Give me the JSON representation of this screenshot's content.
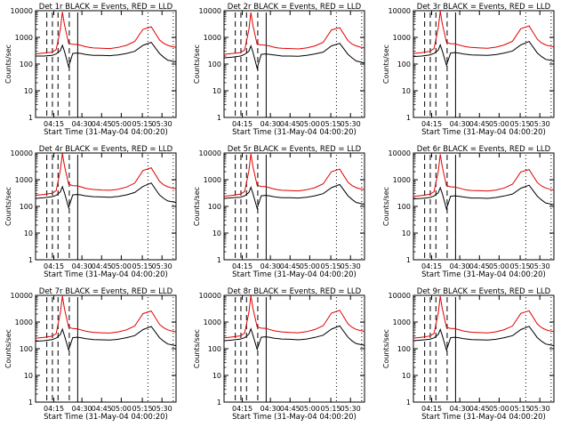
{
  "figure": {
    "xlabel": "Start Time (31-May-04 04:00:20)",
    "ylabel": "Counts/sec",
    "x_ticks": [
      "04:15",
      "04:30",
      "04:45",
      "05:00",
      "05:15",
      "05:30"
    ],
    "y_ticks": [
      "1",
      "10",
      "100",
      "1000",
      "10000"
    ],
    "colors": {
      "events": "#000000",
      "lld": "#e00000"
    }
  },
  "chart_data": [
    {
      "type": "line",
      "title": "Det 1r BLACK = Events, RED = LLD",
      "xlabel": "Start Time (31-May-04 04:00:20)",
      "ylabel": "Counts/sec",
      "yscale": "log",
      "ylim": [
        1,
        10000
      ],
      "xlim_minutes": [
        4,
        38
      ],
      "x": [
        4,
        6,
        8,
        9,
        10,
        10.5,
        11,
        12,
        13,
        14,
        15,
        16,
        17,
        18,
        20,
        22,
        24,
        26,
        28,
        30,
        32,
        34,
        35,
        36,
        37,
        38
      ],
      "series": [
        {
          "name": "Events",
          "color": "#000000",
          "values": [
            200,
            200,
            210,
            240,
            320,
            500,
            300,
            80,
            250,
            260,
            250,
            230,
            220,
            210,
            210,
            205,
            220,
            250,
            300,
            500,
            650,
            250,
            180,
            140,
            130,
            120
          ]
        },
        {
          "name": "LLD",
          "color": "#e00000",
          "values": [
            240,
            260,
            280,
            350,
            2000,
            9000,
            3000,
            600,
            550,
            540,
            500,
            450,
            420,
            400,
            390,
            380,
            420,
            500,
            700,
            2000,
            2500,
            800,
            600,
            500,
            450,
            420
          ]
        }
      ]
    },
    {
      "type": "line",
      "title": "Det 2r BLACK = Events, RED = LLD",
      "xlabel": "Start Time (31-May-04 04:00:20)",
      "ylabel": "Counts/sec",
      "yscale": "log",
      "ylim": [
        1,
        10000
      ],
      "xlim_minutes": [
        4,
        38
      ],
      "x": [
        4,
        6,
        8,
        9,
        10,
        10.5,
        11,
        12,
        13,
        14,
        15,
        16,
        17,
        18,
        20,
        22,
        24,
        26,
        28,
        30,
        32,
        34,
        35,
        36,
        37,
        38
      ],
      "series": [
        {
          "name": "Events",
          "color": "#000000",
          "values": [
            170,
            180,
            200,
            230,
            300,
            480,
            280,
            70,
            230,
            240,
            230,
            220,
            210,
            200,
            200,
            195,
            210,
            240,
            280,
            480,
            600,
            230,
            170,
            130,
            120,
            110
          ]
        },
        {
          "name": "LLD",
          "color": "#e00000",
          "values": [
            230,
            250,
            270,
            340,
            1900,
            8500,
            2800,
            550,
            520,
            510,
            480,
            430,
            400,
            390,
            380,
            370,
            400,
            480,
            650,
            1900,
            2300,
            750,
            560,
            480,
            430,
            400
          ]
        }
      ]
    },
    {
      "type": "line",
      "title": "Det 3r BLACK = Events, RED = LLD",
      "xlabel": "Start Time (31-May-04 04:00:20)",
      "ylabel": "Counts/sec",
      "yscale": "log",
      "ylim": [
        1,
        10000
      ],
      "xlim_minutes": [
        4,
        38
      ],
      "x": [
        4,
        6,
        8,
        9,
        10,
        10.5,
        11,
        12,
        13,
        14,
        15,
        16,
        17,
        18,
        20,
        22,
        24,
        26,
        28,
        30,
        32,
        34,
        35,
        36,
        37,
        38
      ],
      "series": [
        {
          "name": "Events",
          "color": "#000000",
          "values": [
            190,
            200,
            220,
            250,
            330,
            520,
            310,
            90,
            260,
            270,
            260,
            240,
            230,
            220,
            215,
            210,
            225,
            260,
            310,
            520,
            700,
            260,
            190,
            150,
            140,
            130
          ]
        },
        {
          "name": "LLD",
          "color": "#e00000",
          "values": [
            250,
            270,
            300,
            380,
            2200,
            9500,
            3200,
            650,
            580,
            570,
            520,
            470,
            440,
            420,
            400,
            390,
            430,
            520,
            720,
            2100,
            2700,
            850,
            620,
            520,
            470,
            440
          ]
        }
      ]
    },
    {
      "type": "line",
      "title": "Det 4r BLACK = Events, RED = LLD",
      "xlabel": "Start Time (31-May-04 04:00:20)",
      "ylabel": "Counts/sec",
      "yscale": "log",
      "ylim": [
        1,
        10000
      ],
      "xlim_minutes": [
        4,
        38
      ],
      "x": [
        4,
        6,
        8,
        9,
        10,
        10.5,
        11,
        12,
        13,
        14,
        15,
        16,
        17,
        18,
        20,
        22,
        24,
        26,
        28,
        30,
        32,
        34,
        35,
        36,
        37,
        38
      ],
      "series": [
        {
          "name": "Events",
          "color": "#000000",
          "values": [
            200,
            210,
            230,
            260,
            350,
            550,
            320,
            90,
            270,
            280,
            270,
            250,
            240,
            230,
            225,
            220,
            235,
            270,
            330,
            560,
            750,
            270,
            200,
            160,
            150,
            140
          ]
        },
        {
          "name": "LLD",
          "color": "#e00000",
          "values": [
            260,
            280,
            310,
            390,
            2300,
            9800,
            3300,
            680,
            600,
            590,
            540,
            480,
            450,
            430,
            410,
            400,
            440,
            530,
            740,
            2200,
            2800,
            870,
            640,
            540,
            490,
            450
          ]
        }
      ]
    },
    {
      "type": "line",
      "title": "Det 5r BLACK = Events, RED = LLD",
      "xlabel": "Start Time (31-May-04 04:00:20)",
      "ylabel": "Counts/sec",
      "yscale": "log",
      "ylim": [
        1,
        10000
      ],
      "xlim_minutes": [
        4,
        38
      ],
      "x": [
        4,
        6,
        8,
        9,
        10,
        10.5,
        11,
        12,
        13,
        14,
        15,
        16,
        17,
        18,
        20,
        22,
        24,
        26,
        28,
        30,
        32,
        34,
        35,
        36,
        37,
        38
      ],
      "series": [
        {
          "name": "Events",
          "color": "#000000",
          "values": [
            200,
            210,
            220,
            250,
            330,
            520,
            300,
            85,
            250,
            260,
            250,
            230,
            220,
            210,
            210,
            205,
            220,
            250,
            300,
            500,
            660,
            250,
            180,
            140,
            130,
            120
          ]
        },
        {
          "name": "LLD",
          "color": "#e00000",
          "values": [
            240,
            260,
            290,
            360,
            2100,
            9200,
            3100,
            620,
            560,
            550,
            500,
            450,
            420,
            400,
            390,
            380,
            420,
            500,
            700,
            2000,
            2500,
            800,
            600,
            500,
            450,
            420
          ]
        }
      ]
    },
    {
      "type": "line",
      "title": "Det 6r BLACK = Events, RED = LLD",
      "xlabel": "Start Time (31-May-04 04:00:20)",
      "ylabel": "Counts/sec",
      "yscale": "log",
      "ylim": [
        1,
        10000
      ],
      "xlim_minutes": [
        4,
        38
      ],
      "x": [
        4,
        6,
        8,
        9,
        10,
        10.5,
        11,
        12,
        13,
        14,
        15,
        16,
        17,
        18,
        20,
        22,
        24,
        26,
        28,
        30,
        32,
        34,
        35,
        36,
        37,
        38
      ],
      "series": [
        {
          "name": "Events",
          "color": "#000000",
          "values": [
            190,
            200,
            215,
            245,
            320,
            500,
            300,
            80,
            240,
            250,
            240,
            225,
            215,
            205,
            205,
            200,
            215,
            245,
            290,
            480,
            620,
            240,
            175,
            135,
            125,
            115
          ]
        },
        {
          "name": "LLD",
          "color": "#e00000",
          "values": [
            235,
            255,
            285,
            355,
            2000,
            9000,
            3000,
            600,
            540,
            530,
            490,
            440,
            410,
            395,
            385,
            375,
            410,
            490,
            680,
            1950,
            2400,
            780,
            580,
            490,
            440,
            410
          ]
        }
      ]
    },
    {
      "type": "line",
      "title": "Det 7r BLACK = Events, RED = LLD",
      "xlabel": "Start Time (31-May-04 04:00:20)",
      "ylabel": "Counts/sec",
      "yscale": "log",
      "ylim": [
        1,
        10000
      ],
      "xlim_minutes": [
        4,
        38
      ],
      "x": [
        4,
        6,
        8,
        9,
        10,
        10.5,
        11,
        12,
        13,
        14,
        15,
        16,
        17,
        18,
        20,
        22,
        24,
        26,
        28,
        30,
        32,
        34,
        35,
        36,
        37,
        38
      ],
      "series": [
        {
          "name": "Events",
          "color": "#000000",
          "values": [
            190,
            200,
            220,
            250,
            340,
            540,
            310,
            90,
            260,
            270,
            260,
            240,
            230,
            220,
            215,
            210,
            225,
            260,
            310,
            520,
            680,
            260,
            190,
            150,
            140,
            130
          ]
        },
        {
          "name": "LLD",
          "color": "#e00000",
          "values": [
            245,
            265,
            295,
            370,
            2200,
            9400,
            3150,
            640,
            570,
            560,
            510,
            460,
            430,
            410,
            395,
            385,
            425,
            510,
            710,
            2050,
            2600,
            820,
            610,
            510,
            460,
            430
          ]
        }
      ]
    },
    {
      "type": "line",
      "title": "Det 8r BLACK = Events, RED = LLD",
      "xlabel": "Start Time (31-May-04 04:00:20)",
      "ylabel": "Counts/sec",
      "yscale": "log",
      "ylim": [
        1,
        10000
      ],
      "xlim_minutes": [
        4,
        38
      ],
      "x": [
        4,
        6,
        8,
        9,
        10,
        10.5,
        11,
        12,
        13,
        14,
        15,
        16,
        17,
        18,
        20,
        22,
        24,
        26,
        28,
        30,
        32,
        34,
        35,
        36,
        37,
        38
      ],
      "series": [
        {
          "name": "Events",
          "color": "#000000",
          "values": [
            200,
            210,
            230,
            260,
            350,
            560,
            320,
            95,
            270,
            280,
            270,
            250,
            240,
            230,
            225,
            215,
            230,
            265,
            320,
            540,
            720,
            270,
            195,
            155,
            145,
            135
          ]
        },
        {
          "name": "LLD",
          "color": "#e00000",
          "values": [
            255,
            275,
            305,
            385,
            2250,
            9600,
            3250,
            660,
            590,
            580,
            530,
            475,
            445,
            425,
            405,
            395,
            435,
            525,
            730,
            2150,
            2750,
            860,
            630,
            530,
            480,
            445
          ]
        }
      ]
    },
    {
      "type": "line",
      "title": "Det 9r BLACK = Events, RED = LLD",
      "xlabel": "Start Time (31-May-04 04:00:20)",
      "ylabel": "Counts/sec",
      "yscale": "log",
      "ylim": [
        1,
        10000
      ],
      "xlim_minutes": [
        4,
        38
      ],
      "x": [
        4,
        6,
        8,
        9,
        10,
        10.5,
        11,
        12,
        13,
        14,
        15,
        16,
        17,
        18,
        20,
        22,
        24,
        26,
        28,
        30,
        32,
        34,
        35,
        36,
        37,
        38
      ],
      "series": [
        {
          "name": "Events",
          "color": "#000000",
          "values": [
            200,
            210,
            225,
            255,
            340,
            530,
            310,
            88,
            260,
            270,
            260,
            240,
            230,
            220,
            215,
            210,
            225,
            260,
            310,
            520,
            690,
            260,
            190,
            150,
            140,
            130
          ]
        },
        {
          "name": "LLD",
          "color": "#e00000",
          "values": [
            250,
            270,
            300,
            375,
            2150,
            9300,
            3150,
            640,
            575,
            565,
            515,
            465,
            435,
            415,
            400,
            390,
            430,
            515,
            715,
            2100,
            2650,
            840,
            620,
            515,
            465,
            435
          ]
        }
      ]
    }
  ]
}
